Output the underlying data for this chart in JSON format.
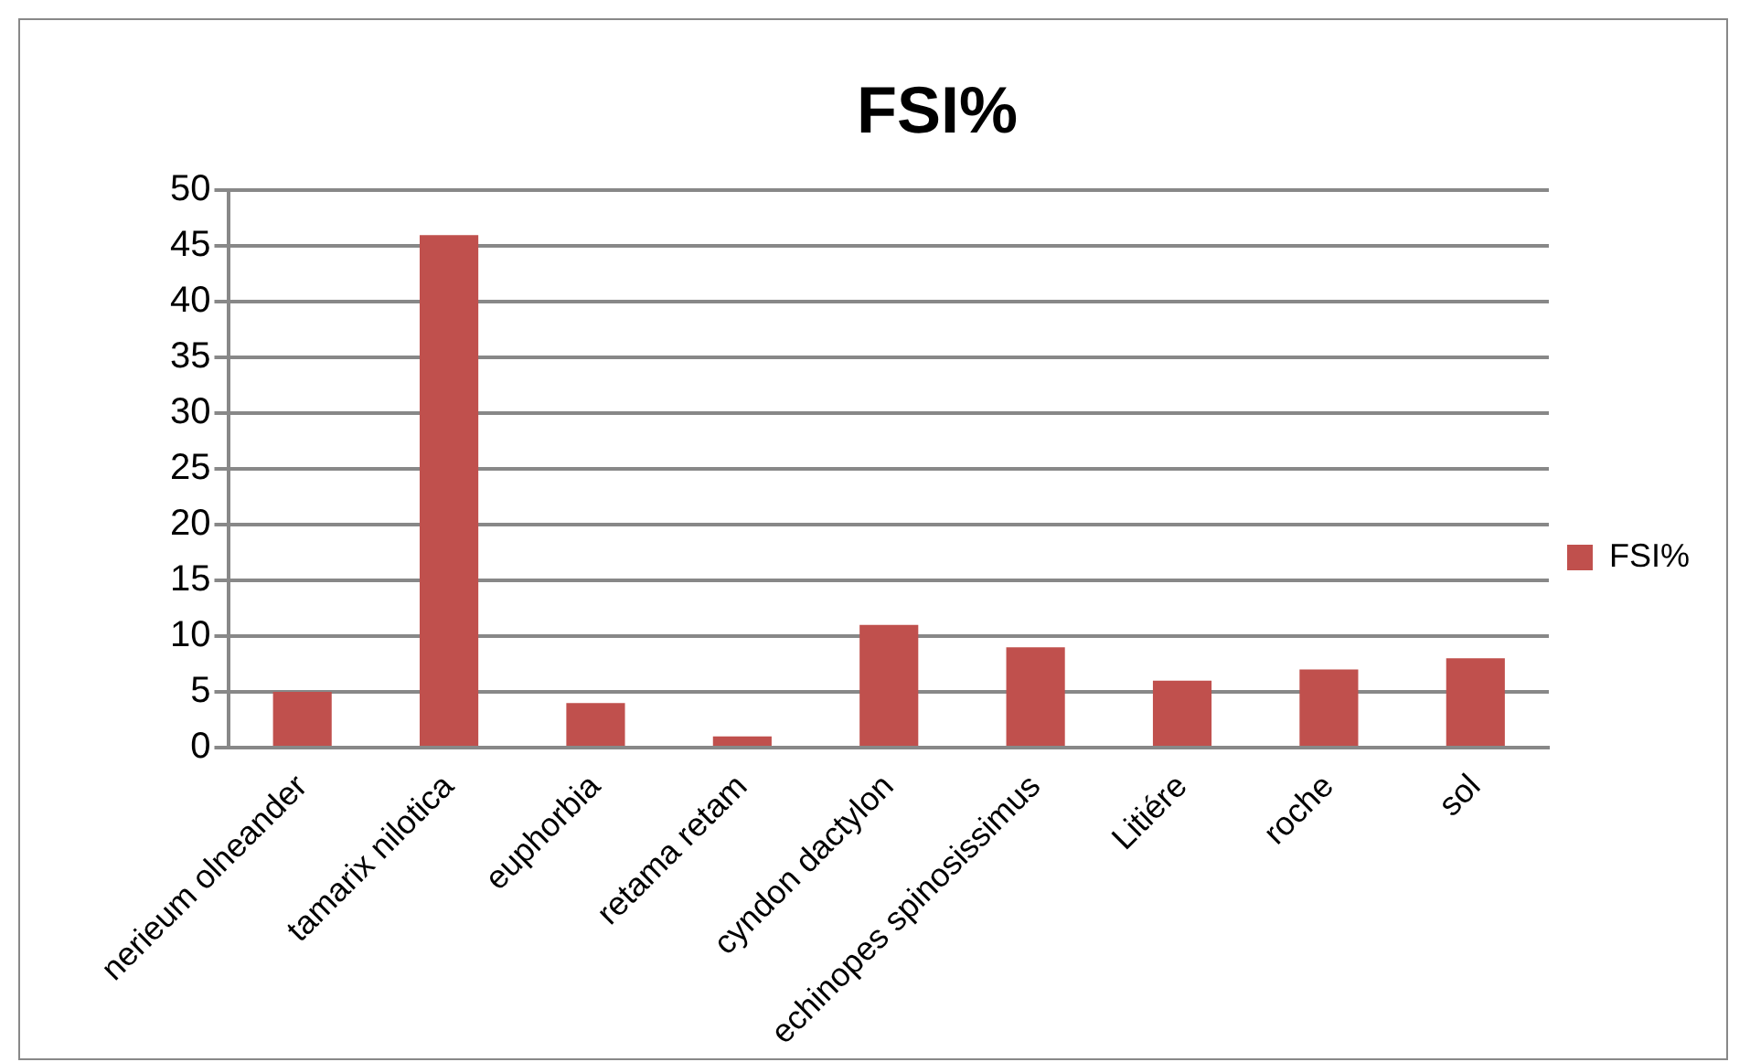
{
  "chart_data": {
    "type": "bar",
    "title": "FSI%",
    "categories": [
      "nerieum olneander",
      "tamarix nilotica",
      "euphorbia",
      "retama retam",
      "cyndon dactylon",
      "echinopes spinosissimus",
      "Litiére",
      "roche",
      "sol"
    ],
    "series": [
      {
        "name": "FSI%",
        "color": "#c0504d",
        "values": [
          5,
          46,
          4,
          1,
          11,
          9,
          6,
          7,
          8
        ]
      }
    ],
    "ylim": [
      0,
      50
    ],
    "yticks": [
      0,
      5,
      10,
      15,
      20,
      25,
      30,
      35,
      40,
      45,
      50
    ],
    "grid": "y",
    "legend": "right"
  }
}
